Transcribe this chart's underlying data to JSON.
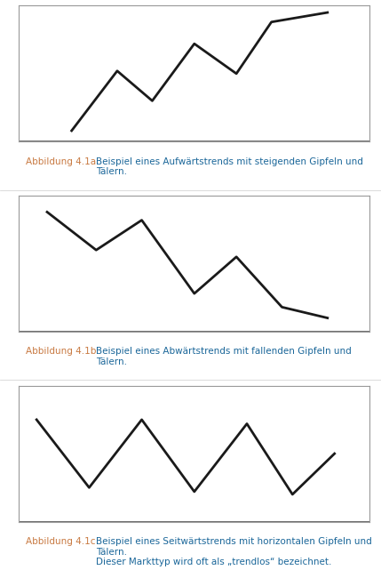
{
  "chart1": {
    "x": [
      0.15,
      0.28,
      0.38,
      0.5,
      0.62,
      0.72,
      0.88
    ],
    "y": [
      0.08,
      0.52,
      0.3,
      0.72,
      0.5,
      0.88,
      0.95
    ],
    "label": "Abbildung 4.1a",
    "caption": "Beispiel eines Aufwärtstrends mit steigenden Gipfeln und Tälern."
  },
  "chart2": {
    "x": [
      0.08,
      0.22,
      0.35,
      0.5,
      0.62,
      0.75,
      0.88
    ],
    "y": [
      0.88,
      0.6,
      0.82,
      0.28,
      0.55,
      0.18,
      0.1
    ],
    "label": "Abbildung 4.1b",
    "caption": "Beispiel eines Abwärtstrends mit fallenden Gipfeln und Tälern."
  },
  "chart3": {
    "x": [
      0.05,
      0.2,
      0.35,
      0.5,
      0.65,
      0.78,
      0.9
    ],
    "y": [
      0.75,
      0.25,
      0.75,
      0.22,
      0.72,
      0.2,
      0.5
    ],
    "label": "Abbildung 4.1c",
    "caption1": "Beispiel eines Seitwärtstrends mit horizontalen Gipfeln und Tälern.",
    "caption2": "Dieser Markttyp wird oft als „trendlos“ bezeichnet."
  },
  "line_color": "#1a1a1a",
  "line_width": 2.0,
  "box_edge_color": "#888888",
  "label_color": "#c87941",
  "caption_color": "#1a6699",
  "background_color": "#ffffff",
  "label_fontsize": 7.5,
  "caption_fontsize": 7.5,
  "axis_line_color": "#555555"
}
